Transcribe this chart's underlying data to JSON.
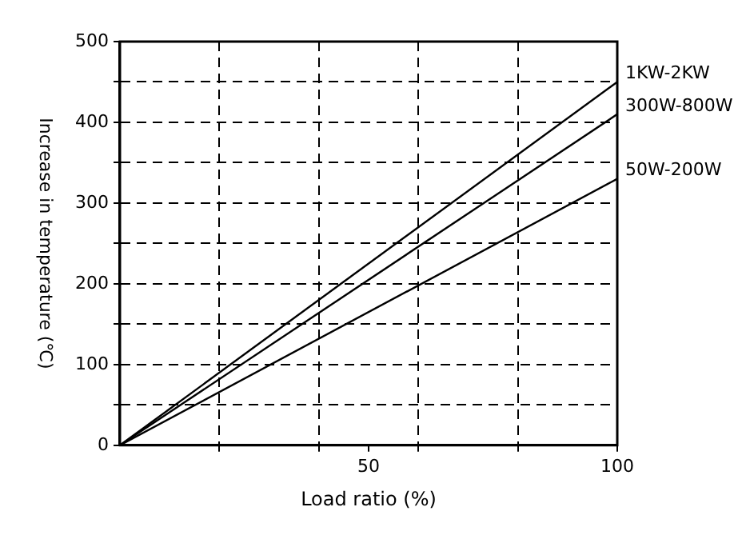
{
  "chart_data": {
    "type": "line",
    "xlabel": "Load ratio (%)",
    "ylabel": "Increase in temperature (℃)",
    "x": [
      0,
      100
    ],
    "series": [
      {
        "name": "1KW-2KW",
        "color": "#000000",
        "values": [
          0,
          450
        ]
      },
      {
        "name": "300W-800W",
        "color": "#000000",
        "values": [
          0,
          410
        ]
      },
      {
        "name": "50W-200W",
        "color": "#000000",
        "values": [
          0,
          330
        ]
      }
    ],
    "xlim": [
      0,
      100
    ],
    "xticks": [
      {
        "value": 20,
        "label": null
      },
      {
        "value": 40,
        "label": null
      },
      50,
      {
        "value": 60,
        "label": null
      },
      {
        "value": 80,
        "label": null
      },
      100
    ],
    "ylim": [
      0,
      500
    ],
    "yticks": [
      0,
      {
        "value": 50,
        "label": null
      },
      100,
      {
        "value": 150,
        "label": null
      },
      200,
      {
        "value": 250,
        "label": null
      },
      300,
      {
        "value": 350,
        "label": null
      },
      400,
      {
        "value": 450,
        "label": null
      },
      500
    ],
    "grid": true,
    "legend": false,
    "marker": "none",
    "line_style": "solid"
  }
}
